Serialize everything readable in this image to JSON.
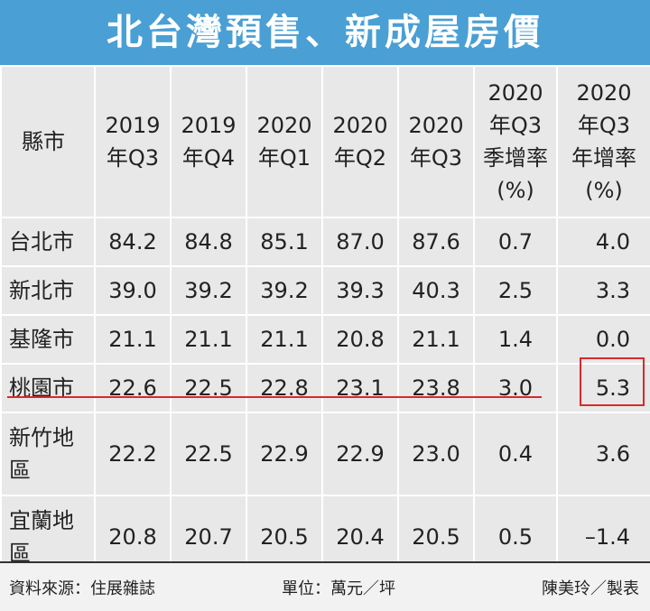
{
  "title": "北台灣預售、新成屋房價",
  "chart_data": {
    "type": "table",
    "columns": [
      "縣市",
      "2019\n年Q3",
      "2019\n年Q4",
      "2020\n年Q1",
      "2020\n年Q2",
      "2020\n年Q3",
      "2020\n年Q3\n季增率\n(%)",
      "2020\n年Q3\n年增率\n(%)"
    ],
    "rows": [
      {
        "county": "台北市",
        "values": [
          "84.2",
          "84.8",
          "85.1",
          "87.0",
          "87.6",
          "0.7",
          "4.0"
        ]
      },
      {
        "county": "新北市",
        "values": [
          "39.0",
          "39.2",
          "39.2",
          "39.3",
          "40.3",
          "2.5",
          "3.3"
        ]
      },
      {
        "county": "基隆市",
        "values": [
          "21.1",
          "21.1",
          "21.1",
          "20.8",
          "21.1",
          "1.4",
          "0.0"
        ]
      },
      {
        "county": "桃園市",
        "values": [
          "22.6",
          "22.5",
          "22.8",
          "23.1",
          "23.8",
          "3.0",
          "5.3"
        ]
      },
      {
        "county": "新竹地\n區",
        "values": [
          "22.2",
          "22.5",
          "22.9",
          "22.9",
          "23.0",
          "0.4",
          "3.6"
        ]
      },
      {
        "county": "宜蘭地\n區",
        "values": [
          "20.8",
          "20.7",
          "20.5",
          "20.4",
          "20.5",
          "0.5",
          "–1.4"
        ]
      }
    ],
    "highlight": {
      "row": "桃園市",
      "underline_color": "#d9292a",
      "boxed_cell": "5.3"
    }
  },
  "footer": {
    "source": "資料來源：住展雜誌",
    "unit": "單位：萬元／坪",
    "credit": "陳美玲／製表"
  },
  "colors": {
    "header_bg": "#4a9fd4",
    "table_bg": "#e8e8e8",
    "highlight": "#d9292a"
  }
}
